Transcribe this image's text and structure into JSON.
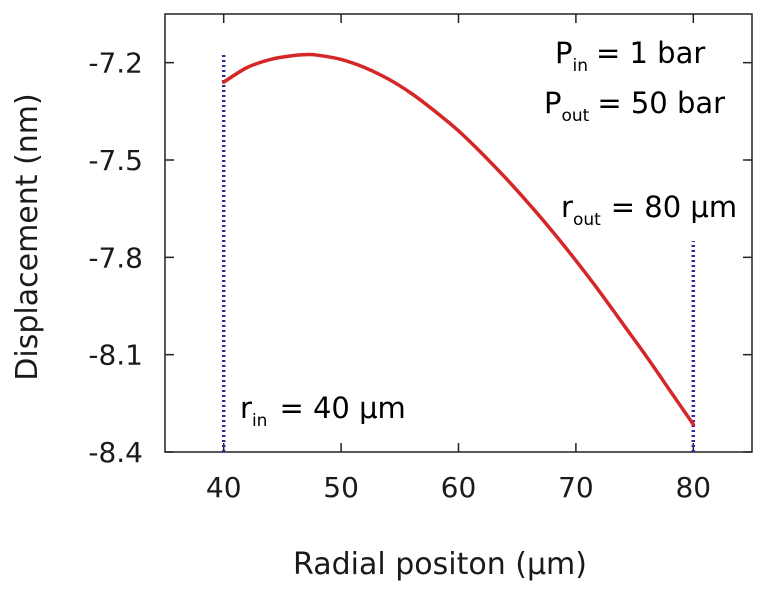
{
  "chart_data": {
    "type": "line",
    "xlabel": "Radial positon (μm)",
    "ylabel": "Displacement (nm)",
    "title": "",
    "xlim": [
      35,
      85
    ],
    "ylim": [
      -8.4,
      -7.05
    ],
    "x_ticks": [
      40,
      50,
      60,
      70,
      80
    ],
    "x_tick_labels": [
      "40",
      "50",
      "60",
      "70",
      "80"
    ],
    "y_ticks": [
      -7.2,
      -7.5,
      -7.8,
      -8.1,
      -8.4
    ],
    "y_tick_labels": [
      "-7.2",
      "-7.5",
      "-7.8",
      "-8.1",
      "-8.4"
    ],
    "grid": false,
    "series": [
      {
        "color": "#d62728",
        "x": [
          40,
          42,
          44,
          46,
          47,
          48,
          50,
          52,
          54,
          56,
          58,
          60,
          62,
          64,
          66,
          68,
          70,
          72,
          74,
          76,
          78,
          80
        ],
        "y": [
          -7.26,
          -7.215,
          -7.19,
          -7.178,
          -7.175,
          -7.177,
          -7.19,
          -7.215,
          -7.25,
          -7.295,
          -7.35,
          -7.41,
          -7.48,
          -7.555,
          -7.635,
          -7.72,
          -7.81,
          -7.905,
          -8.005,
          -8.105,
          -8.21,
          -8.315
        ]
      }
    ],
    "boundary_lines": [
      {
        "x": 40,
        "y_from": -8.4,
        "y_to": -7.17,
        "color": "#2b2b9c"
      },
      {
        "x": 80,
        "y_from": -8.4,
        "y_to": -7.75,
        "color": "#2b2b9c"
      }
    ],
    "annotations": [
      {
        "id": "p_in",
        "symbol": "P",
        "sub": "in",
        "rest": "= 1 bar",
        "color": "#e8862a"
      },
      {
        "id": "p_out",
        "symbol": "P",
        "sub": "out",
        "rest": "= 50 bar",
        "color": "#2e7d32"
      },
      {
        "id": "r_out",
        "symbol": "r",
        "sub": "out",
        "rest": "= 80 μm",
        "color": "#1f3f7a"
      },
      {
        "id": "r_in",
        "symbol": "r",
        "sub": "in",
        "rest": "= 40 μm",
        "color": "#1f3f7a"
      }
    ]
  }
}
